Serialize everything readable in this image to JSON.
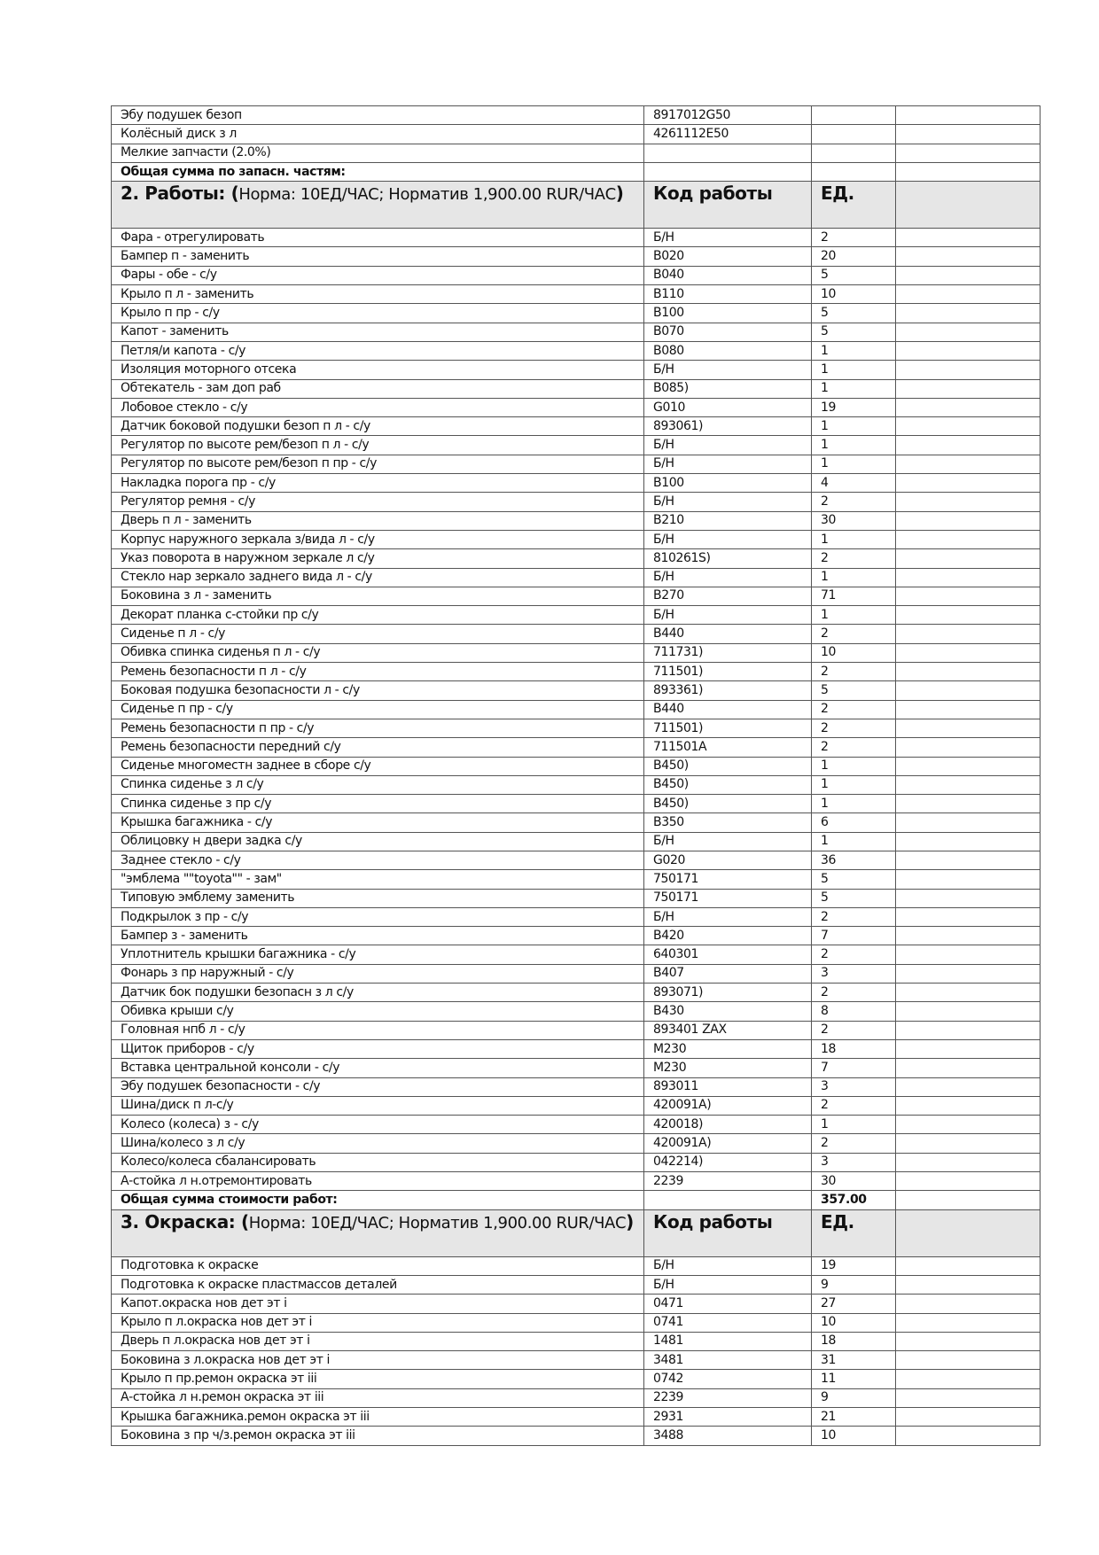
{
  "parts_tail": [
    [
      "Эбу подушек безоп",
      "8917012G50",
      ""
    ],
    [
      "Колёсный диск з л",
      "4261112E50",
      ""
    ],
    [
      "Мелкие запчасти (2.0%)",
      "",
      ""
    ]
  ],
  "parts_total": {
    "label": "Общая сумма по запасн. частям:",
    "value": ""
  },
  "works": {
    "title": "2. Работы: (",
    "norm": "Норма: 10ЕД/ЧАС; Норматив 1,900.00 RUR/ЧАС",
    "close": ")",
    "col_code": "Код работы",
    "col_units": "ЕД.",
    "rows": [
      [
        "Фара - отрегулировать",
        "Б/Н",
        "2"
      ],
      [
        "Бампер п - заменить",
        "B020",
        "20"
      ],
      [
        "Фары - обе - с/у",
        "B040",
        "5"
      ],
      [
        "Крыло п л - заменить",
        "B110",
        "10"
      ],
      [
        "Крыло п пр - с/у",
        "B100",
        "5"
      ],
      [
        "Капот - заменить",
        "B070",
        "5"
      ],
      [
        "Петля/и капота - с/у",
        "B080",
        "1"
      ],
      [
        "Изоляция моторного отсека",
        "Б/Н",
        "1"
      ],
      [
        "Обтекатель - зам доп раб",
        "B085)",
        "1"
      ],
      [
        "Лобовое стекло - с/у",
        "G010",
        "19"
      ],
      [
        "Датчик боковой подушки безоп п л - с/у",
        "893061)",
        "1"
      ],
      [
        "Регулятор по высоте рем/безоп п л - с/у",
        "Б/Н",
        "1"
      ],
      [
        "Регулятор по высоте рем/безоп п пр - с/у",
        "Б/Н",
        "1"
      ],
      [
        "Накладка порога пр - с/у",
        "B100",
        "4"
      ],
      [
        "Регулятор ремня - с/у",
        "Б/Н",
        "2"
      ],
      [
        "Дверь п л - заменить",
        "B210",
        "30"
      ],
      [
        "Корпус наружного зеркала з/вида л - с/у",
        "Б/Н",
        "1"
      ],
      [
        "Указ поворота в наружном зеркале л с/у",
        "810261S)",
        "2"
      ],
      [
        "Стекло нар зеркало заднего вида л - с/у",
        "Б/Н",
        "1"
      ],
      [
        "Боковина з л  - заменить",
        "B270",
        "71"
      ],
      [
        "Декорат планка с-стойки пр с/у",
        "Б/Н",
        "1"
      ],
      [
        "Сиденье п л  - с/у",
        "B440",
        "2"
      ],
      [
        "Обивка спинка сиденья п л - с/у",
        "711731)",
        "10"
      ],
      [
        "Ремень безопасности п л - с/у",
        "711501)",
        "2"
      ],
      [
        "Боковая подушка безопасности л - с/у",
        "893361)",
        "5"
      ],
      [
        "Сиденье п пр - с/у",
        "B440",
        "2"
      ],
      [
        "Ремень безопасности п пр  - с/у",
        "711501)",
        "2"
      ],
      [
        "Ремень безопасности передний с/у",
        "711501A",
        "2"
      ],
      [
        "Сиденье многоместн заднее в сборе с/у",
        "B450)",
        "1"
      ],
      [
        "Спинка сиденье з л с/у",
        "B450)",
        "1"
      ],
      [
        "Спинка сиденье з пр с/у",
        "B450)",
        "1"
      ],
      [
        "Крышка багажника - с/у",
        "B350",
        "6"
      ],
      [
        "Облицовку н двери задка с/у",
        "Б/Н",
        "1"
      ],
      [
        "Заднее стекло - с/у",
        "G020",
        "36"
      ],
      [
        "\"эмблема \"\"toyota\"\" - зам\"",
        "750171",
        "5"
      ],
      [
        "Типовую эмблему заменить",
        "750171",
        "5"
      ],
      [
        "Подкрылок з пр - с/у",
        "Б/Н",
        "2"
      ],
      [
        "Бампер з - заменить",
        "B420",
        "7"
      ],
      [
        "Уплотнитель крышки багажника - с/у",
        "640301",
        "2"
      ],
      [
        "Фонарь з пр наружный - с/у",
        "B407",
        "3"
      ],
      [
        "Датчик бок подушки безопасн з л с/у",
        "893071)",
        "2"
      ],
      [
        "Обивка крыши с/у",
        "B430",
        "8"
      ],
      [
        "Головная нпб л - с/у",
        "893401 ZAX",
        "2"
      ],
      [
        "Щиток приборов - с/у",
        "M230",
        "18"
      ],
      [
        "Вставка центральной консоли - с/у",
        "M230",
        "7"
      ],
      [
        "Эбу подушек безопасности - с/у",
        "893011",
        "3"
      ],
      [
        "Шина/диск п л-с/у",
        "420091A)",
        "2"
      ],
      [
        "Колесо (колеса) з - с/у",
        "420018)",
        "1"
      ],
      [
        "Шина/колесо з л с/у",
        "420091A)",
        "2"
      ],
      [
        "Колесо/колеса сбалансировать",
        "042214)",
        "3"
      ],
      [
        "А-стойка л н.отремонтировать",
        "2239",
        "30"
      ]
    ],
    "total_label": "Общая сумма стоимости работ:",
    "total_value": "357.00"
  },
  "paint": {
    "title": "3. Окраска: (",
    "norm": "Норма: 10ЕД/ЧАС; Норматив 1,900.00 RUR/ЧАС",
    "close": ")",
    "col_code": "Код работы",
    "col_units": "ЕД.",
    "rows": [
      [
        "Подготовка к окраске",
        "Б/Н",
        "19"
      ],
      [
        "Подготовка к окраске пластмассов деталей",
        "Б/Н",
        "9"
      ],
      [
        "Капот.окраска нов дет эт i",
        "0471",
        "27"
      ],
      [
        "Крыло п л.окраска нов дет эт i",
        "0741",
        "10"
      ],
      [
        "Дверь п л.окраска нов дет эт i",
        "1481",
        "18"
      ],
      [
        "Боковина з л.окраска нов дет эт i",
        "3481",
        "31"
      ],
      [
        "Крыло п пр.ремон окраска эт iii",
        "0742",
        "11"
      ],
      [
        "А-стойка л н.ремон окраска эт iii",
        "2239",
        "9"
      ],
      [
        "Крышка багажника.ремон окраска эт iii",
        "2931",
        "21"
      ],
      [
        "Боковина з пр ч/з.ремон окраска эт iii",
        "3488",
        "10"
      ]
    ]
  }
}
